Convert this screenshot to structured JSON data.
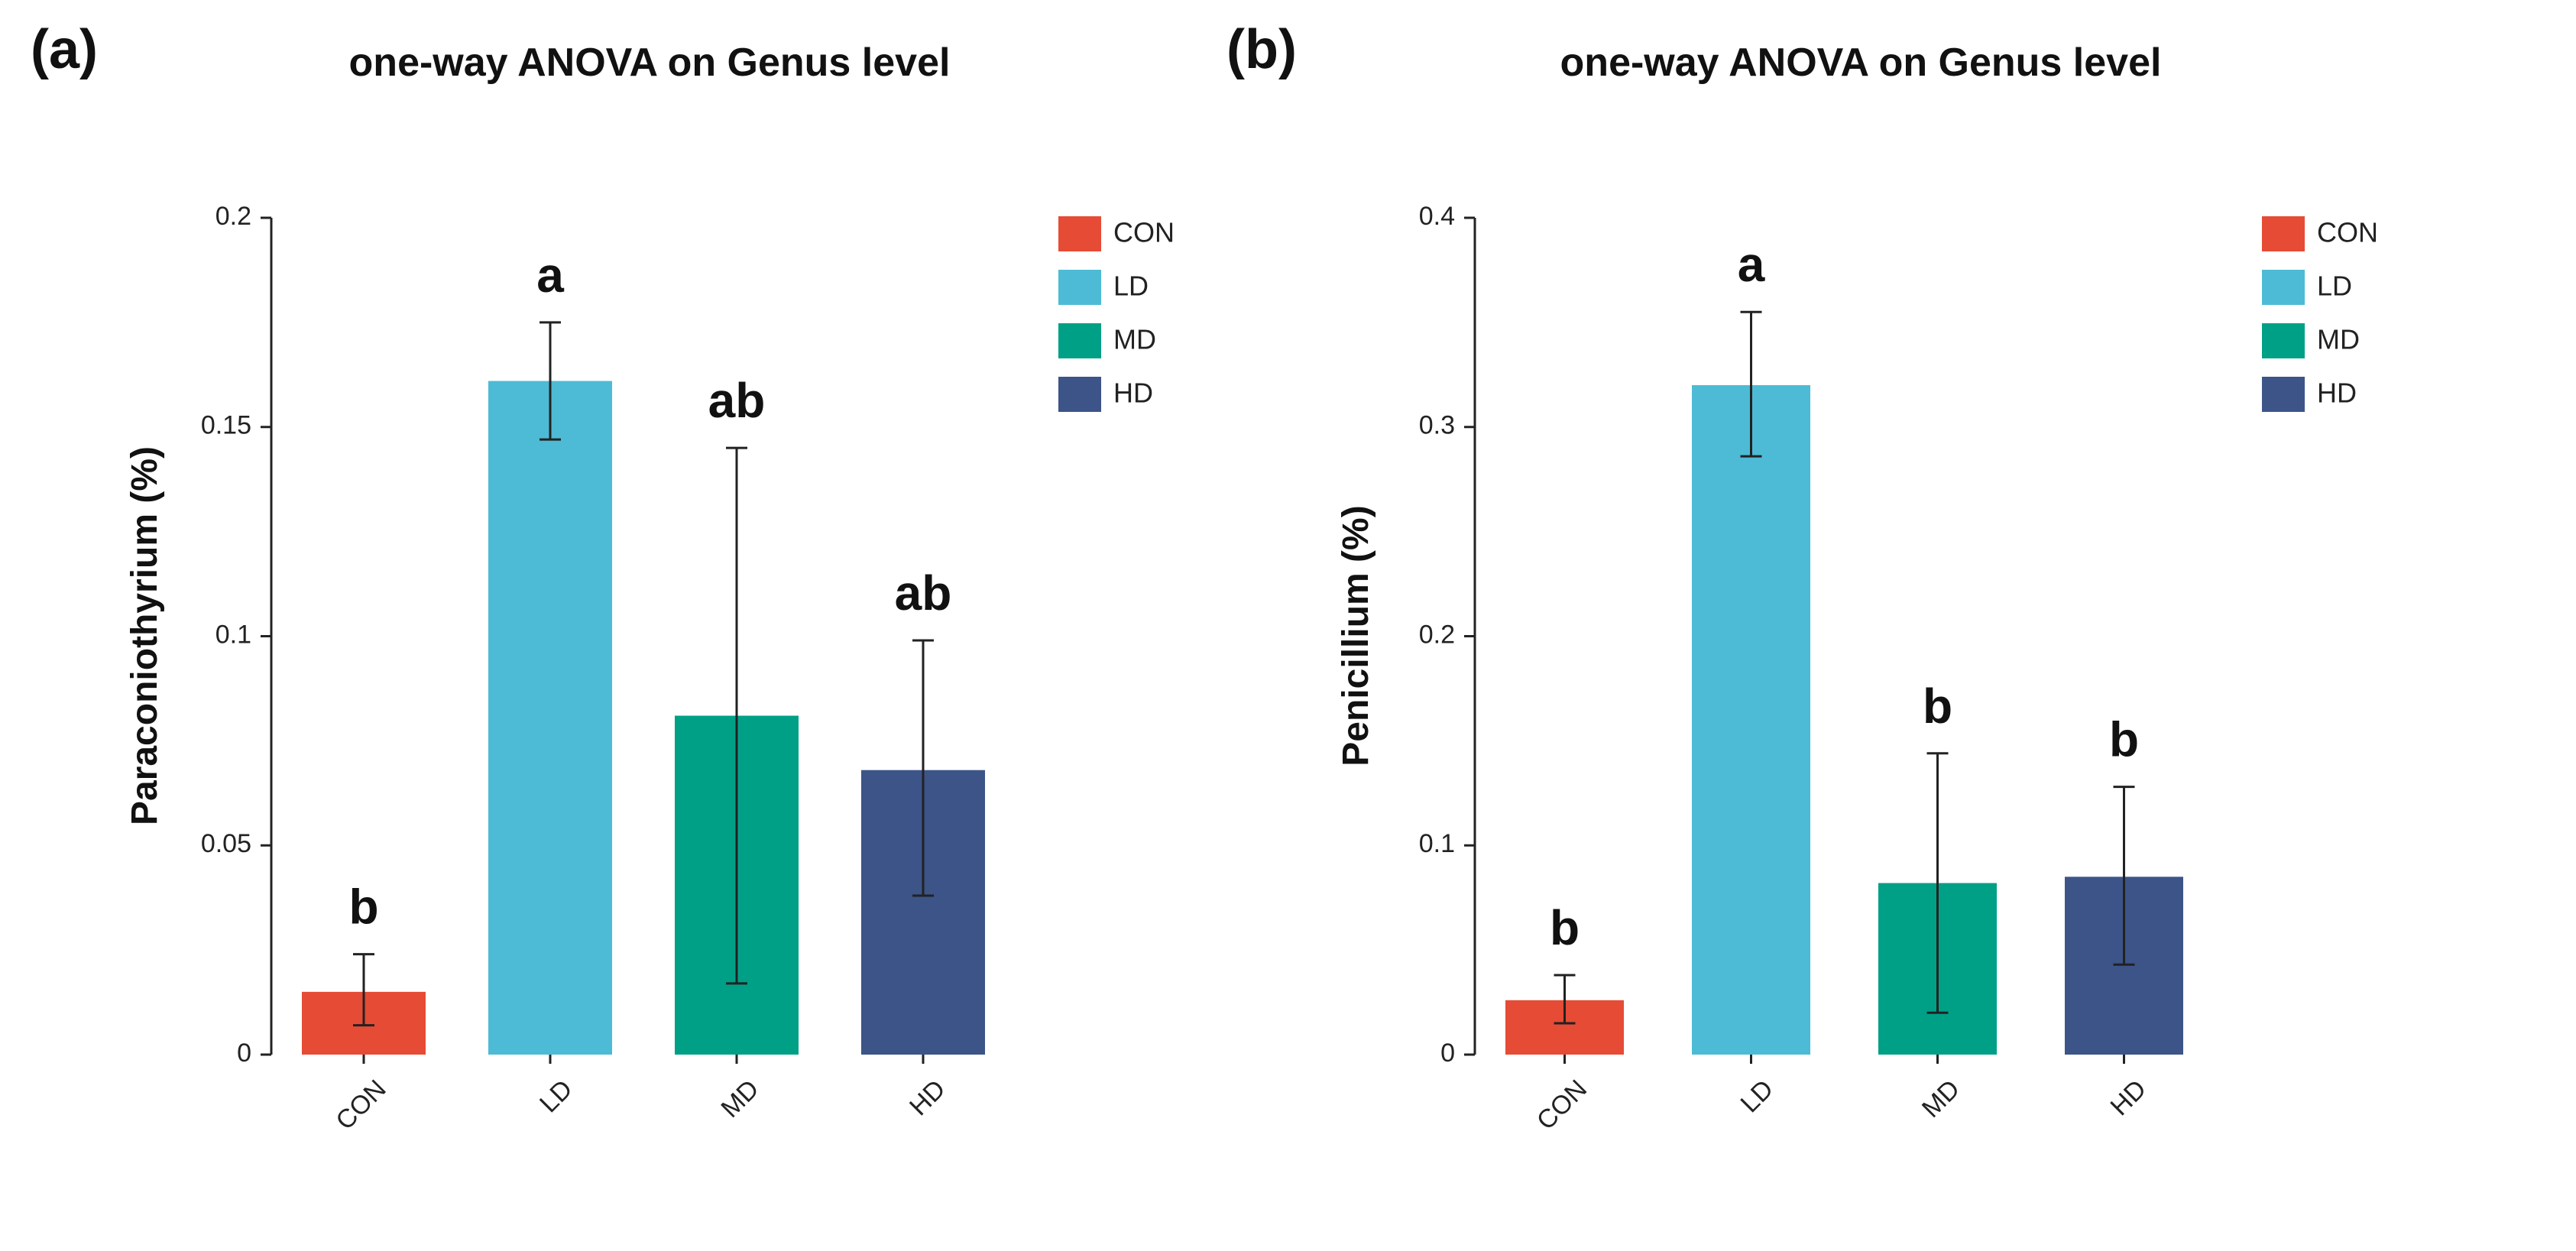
{
  "chart_data": [
    {
      "type": "bar",
      "panel": "(a)",
      "title": "one-way ANOVA on Genus level",
      "ylabel": "Paraconiothyrium  (%)",
      "xlabel": "",
      "ylim": [
        0,
        0.2
      ],
      "yticks": [
        0,
        0.05,
        0.1,
        0.15,
        0.2
      ],
      "ytick_labels": [
        "0",
        "0.05",
        "0.1",
        "0.15",
        "0.2"
      ],
      "categories": [
        "CON",
        "LD",
        "MD",
        "HD"
      ],
      "values": [
        0.015,
        0.161,
        0.081,
        0.068
      ],
      "err_low": [
        0.007,
        0.147,
        0.017,
        0.038
      ],
      "err_high": [
        0.024,
        0.175,
        0.145,
        0.099
      ],
      "letters": [
        "b",
        "a",
        "ab",
        "ab"
      ],
      "colors": [
        "#E64B35",
        "#4DBBD5",
        "#00A087",
        "#3C5488"
      ],
      "legend": [
        "CON",
        "LD",
        "MD",
        "HD"
      ]
    },
    {
      "type": "bar",
      "panel": "(b)",
      "title": "one-way ANOVA on Genus level",
      "ylabel": "Penicillium  (%)",
      "xlabel": "",
      "ylim": [
        0,
        0.4
      ],
      "yticks": [
        0,
        0.1,
        0.2,
        0.3,
        0.4
      ],
      "ytick_labels": [
        "0",
        "0.1",
        "0.2",
        "0.3",
        "0.4"
      ],
      "categories": [
        "CON",
        "LD",
        "MD",
        "HD"
      ],
      "values": [
        0.026,
        0.32,
        0.082,
        0.085
      ],
      "err_low": [
        0.015,
        0.286,
        0.02,
        0.043
      ],
      "err_high": [
        0.038,
        0.355,
        0.144,
        0.128
      ],
      "letters": [
        "b",
        "a",
        "b",
        "b"
      ],
      "colors": [
        "#E64B35",
        "#4DBBD5",
        "#00A087",
        "#3C5488"
      ],
      "legend": [
        "CON",
        "LD",
        "MD",
        "HD"
      ]
    }
  ]
}
